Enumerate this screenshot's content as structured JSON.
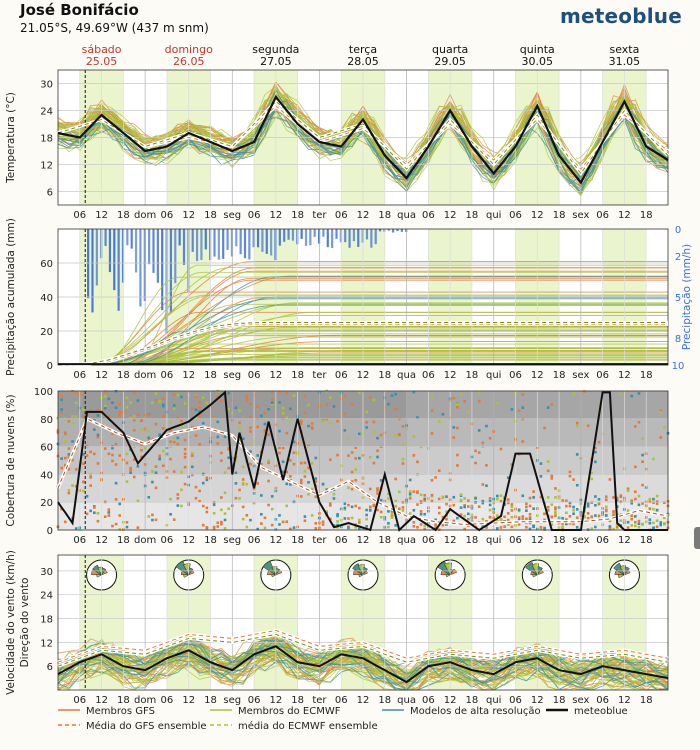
{
  "header": {
    "location": "José Bonifácio",
    "coords": "21.05°S, 49.69°W (437 m snm)",
    "brand": "meteoblue"
  },
  "colors": {
    "gfs": "#e07b3a",
    "ecmwf": "#a8c23a",
    "hires": "#3b8fa8",
    "meteoblue": "#111111",
    "precip_bar": "#3d6fd6",
    "day_highlight": "#eaf5cd",
    "weekend_text": "#c0392b"
  },
  "days": [
    {
      "name": "sábado",
      "date": "25.05",
      "weekend": true
    },
    {
      "name": "domingo",
      "date": "26.05",
      "weekend": true
    },
    {
      "name": "segunda",
      "date": "27.05",
      "weekend": false
    },
    {
      "name": "terça",
      "date": "28.05",
      "weekend": false
    },
    {
      "name": "quarta",
      "date": "29.05",
      "weekend": false
    },
    {
      "name": "quinta",
      "date": "30.05",
      "weekend": false
    },
    {
      "name": "sexta",
      "date": "31.05",
      "weekend": false
    }
  ],
  "x_ticks": [
    "06",
    "12",
    "18",
    "dom",
    "06",
    "12",
    "18",
    "seg",
    "06",
    "12",
    "18",
    "ter",
    "06",
    "12",
    "18",
    "qua",
    "06",
    "12",
    "18",
    "qui",
    "06",
    "12",
    "18",
    "sex",
    "06",
    "12",
    "18"
  ],
  "chart_data": [
    {
      "type": "line",
      "ylabel": "Temperatura (°C)",
      "y_ticks": [
        6,
        12,
        18,
        24,
        30
      ],
      "ylim": [
        3,
        33
      ],
      "x_unit": "hours since 25.05 00:00",
      "meteoblue": {
        "x": [
          0,
          6,
          12,
          18,
          24,
          30,
          36,
          42,
          48,
          54,
          60,
          66,
          72,
          78,
          84,
          90,
          96,
          102,
          108,
          114,
          120,
          126,
          132,
          138,
          144,
          150,
          156,
          162,
          168
        ],
        "values": [
          19,
          18,
          23,
          19,
          15,
          16,
          19,
          17,
          15,
          17,
          27,
          21,
          17,
          16,
          22,
          14,
          9,
          16,
          24,
          16,
          10,
          16,
          25,
          14,
          8,
          17,
          26,
          16,
          13
        ]
      },
      "ecmwf_ensemble_mean": {
        "x": [
          0,
          12,
          24,
          36,
          48,
          60,
          72,
          84,
          96,
          108,
          120,
          132,
          144,
          156,
          168
        ],
        "values": [
          19,
          22,
          16,
          19,
          16,
          26,
          18,
          21,
          11,
          22,
          12,
          23,
          10,
          24,
          14
        ]
      },
      "gfs_ensemble_mean": {
        "x": [
          0,
          12,
          24,
          36,
          48,
          60,
          72,
          84,
          96,
          108,
          120,
          132,
          144,
          156,
          168
        ],
        "values": [
          19,
          22,
          16,
          18,
          16,
          25,
          17,
          20,
          12,
          21,
          13,
          22,
          11,
          23,
          15
        ]
      }
    },
    {
      "type": "line",
      "ylabel": "Precipitação acumulada (mm)",
      "ylabel_right": "Precipitação (mm/h)",
      "y_ticks": [
        0,
        20,
        40,
        60
      ],
      "y_ticks_right": [
        0,
        2,
        5,
        8,
        10
      ],
      "ylim": [
        0,
        80
      ],
      "meteoblue": {
        "x": [
          0,
          168
        ],
        "values": [
          0.5,
          0.5
        ]
      },
      "ecmwf_ensemble_mean": {
        "x": [
          0,
          8,
          14,
          20,
          26,
          32,
          38,
          44,
          50,
          56,
          62,
          168
        ],
        "values": [
          0,
          0.5,
          3,
          7,
          11,
          16,
          20,
          23,
          24.5,
          25,
          25,
          25
        ]
      },
      "gfs_ensemble_mean": {
        "x": [
          0,
          8,
          14,
          20,
          26,
          32,
          38,
          44,
          50,
          56,
          62,
          168
        ],
        "values": [
          0,
          0.5,
          2,
          6,
          10,
          15,
          19,
          22,
          23.5,
          24,
          24,
          24
        ]
      }
    },
    {
      "type": "line",
      "ylabel": "Cobertura de nuvens (%)",
      "y_ticks": [
        0,
        20,
        40,
        60,
        80,
        100
      ],
      "ylim": [
        0,
        100
      ],
      "meteoblue": {
        "x": [
          0,
          4,
          8,
          12,
          18,
          22,
          26,
          30,
          36,
          42,
          46,
          48,
          50,
          54,
          58,
          62,
          66,
          72,
          76,
          80,
          86,
          90,
          94,
          98,
          104,
          108,
          116,
          122,
          126,
          130,
          136,
          140,
          144,
          150,
          152,
          154,
          156,
          162,
          168
        ],
        "values": [
          20,
          5,
          85,
          85,
          70,
          48,
          60,
          72,
          78,
          90,
          99,
          40,
          70,
          30,
          78,
          36,
          80,
          20,
          2,
          5,
          0,
          40,
          0,
          10,
          0,
          15,
          0,
          10,
          55,
          55,
          0,
          0,
          0,
          99,
          99,
          5,
          0,
          0,
          0
        ]
      },
      "ensemble_mean": {
        "x": [
          0,
          8,
          16,
          24,
          32,
          40,
          48,
          56,
          64,
          72,
          80,
          88,
          96,
          104,
          112,
          120,
          128,
          136,
          144,
          152,
          160,
          168
        ],
        "values": [
          30,
          80,
          70,
          62,
          70,
          74,
          68,
          45,
          35,
          25,
          35,
          20,
          10,
          6,
          4,
          5,
          6,
          6,
          6,
          8,
          14,
          10
        ]
      }
    },
    {
      "type": "line",
      "ylabel": "Velocidade do vento (km/h)",
      "ylabel2": "Direção do vento",
      "y_ticks": [
        6,
        12,
        18,
        24,
        30
      ],
      "ylim": [
        0,
        34
      ],
      "meteoblue": {
        "x": [
          0,
          6,
          12,
          18,
          24,
          30,
          36,
          42,
          48,
          54,
          60,
          66,
          72,
          78,
          84,
          90,
          96,
          102,
          108,
          114,
          120,
          126,
          132,
          138,
          144,
          150,
          156,
          162,
          168
        ],
        "values": [
          4,
          7,
          9,
          6,
          5,
          8,
          10,
          7,
          5,
          9,
          11,
          7,
          6,
          9,
          8,
          5,
          2,
          6,
          7,
          5,
          4,
          7,
          8,
          5,
          4,
          6,
          5,
          4,
          3
        ]
      },
      "ecmwf_ensemble_mean": {
        "x": [
          0,
          12,
          24,
          36,
          48,
          60,
          72,
          84,
          96,
          108,
          120,
          132,
          144,
          156,
          168
        ],
        "values": [
          6,
          10,
          9,
          13,
          12,
          14,
          10,
          11,
          7,
          9,
          8,
          10,
          8,
          9,
          7
        ]
      },
      "gfs_ensemble_mean": {
        "x": [
          0,
          12,
          24,
          36,
          48,
          60,
          72,
          84,
          96,
          108,
          120,
          132,
          144,
          156,
          168
        ],
        "values": [
          7,
          11,
          10,
          14,
          13,
          15,
          11,
          12,
          8,
          10,
          9,
          11,
          9,
          10,
          8
        ]
      }
    }
  ],
  "legend": [
    {
      "label": "Membros GFS",
      "color": "#e07b3a",
      "style": "solid"
    },
    {
      "label": "Média do GFS ensemble",
      "color": "#e07b3a",
      "style": "dashed"
    },
    {
      "label": "Membros do ECMWF",
      "color": "#a8c23a",
      "style": "solid"
    },
    {
      "label": "média do ECMWF ensemble",
      "color": "#a8c23a",
      "style": "dashed"
    },
    {
      "label": "Modelos de alta resolução",
      "color": "#3b8fa8",
      "style": "solid"
    },
    {
      "label": "meteoblue",
      "color": "#111111",
      "style": "bold"
    }
  ]
}
